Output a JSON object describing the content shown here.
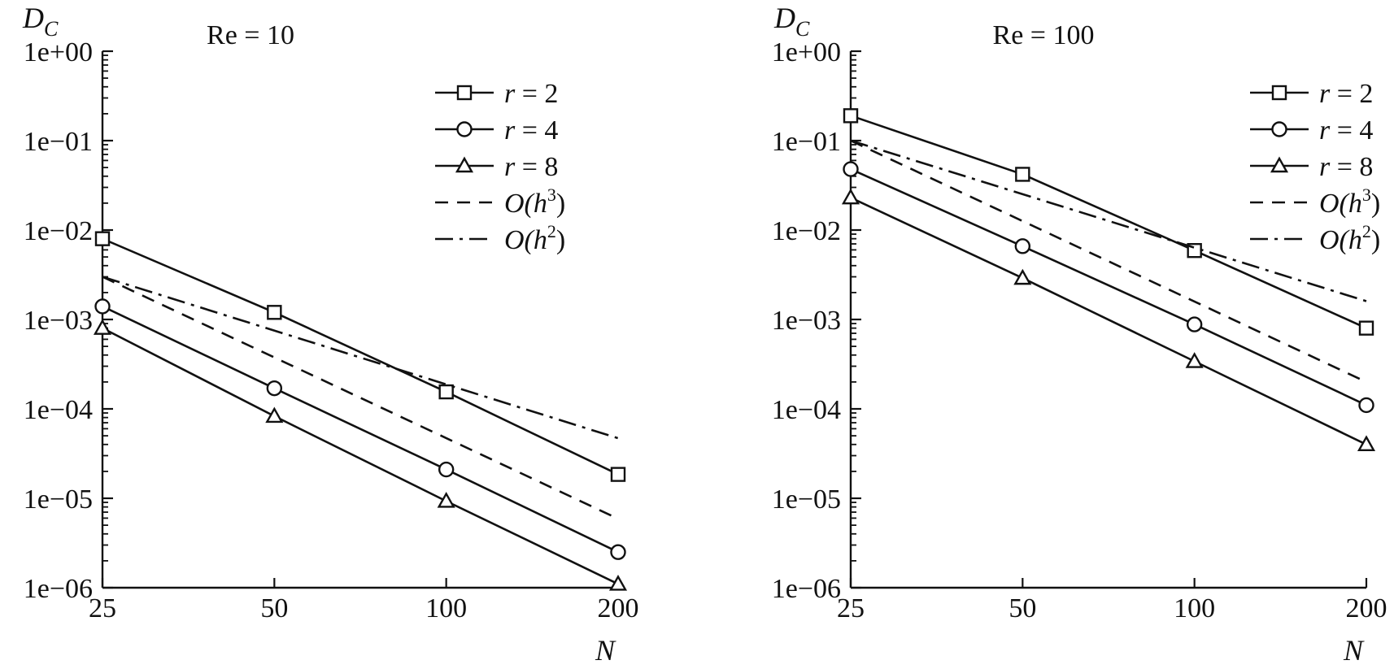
{
  "chart_data": [
    {
      "type": "line",
      "title": "Re = 10",
      "xlabel": "N",
      "ylabel": "D",
      "ylabel_sub": "C",
      "x_scale": "log",
      "y_scale": "log",
      "x_ticks": [
        25,
        50,
        100,
        200
      ],
      "x_tick_labels": [
        "25",
        "50",
        "100",
        "200"
      ],
      "y_ticks": [
        1,
        0.1,
        0.01,
        0.001,
        0.0001,
        1e-05,
        1e-06
      ],
      "y_tick_labels": [
        "1e+00",
        "1e−01",
        "1e−02",
        "1e−03",
        "1e−04",
        "1e−05",
        "1e−06"
      ],
      "xlim": [
        25,
        200
      ],
      "ylim": [
        1e-06,
        1
      ],
      "legend_position": "top-right",
      "series": [
        {
          "name": "r = 2",
          "var": "r",
          "value": "2",
          "marker": "square",
          "style": "solid",
          "x": [
            25,
            50,
            100,
            200
          ],
          "y": [
            0.008,
            0.0012,
            0.000155,
            1.85e-05
          ]
        },
        {
          "name": "r = 4",
          "var": "r",
          "value": "4",
          "marker": "circle",
          "style": "solid",
          "x": [
            25,
            50,
            100,
            200
          ],
          "y": [
            0.0014,
            0.00017,
            2.1e-05,
            2.5e-06
          ]
        },
        {
          "name": "r = 8",
          "var": "r",
          "value": "8",
          "marker": "triangle",
          "style": "solid",
          "x": [
            25,
            50,
            100,
            200
          ],
          "y": [
            0.0008,
            8.3e-05,
            9.3e-06,
            1.1e-06
          ]
        },
        {
          "name": "O(h3)",
          "var": "O(h",
          "exp": "3",
          "close": ")",
          "marker": "none",
          "style": "dashed",
          "x": [
            25,
            200
          ],
          "y": [
            0.003,
            5.9e-06
          ]
        },
        {
          "name": "O(h2)",
          "var": "O(h",
          "exp": "2",
          "close": ")",
          "marker": "none",
          "style": "dashdot",
          "x": [
            25,
            200
          ],
          "y": [
            0.003,
            4.7e-05
          ]
        }
      ]
    },
    {
      "type": "line",
      "title": "Re = 100",
      "xlabel": "N",
      "ylabel": "D",
      "ylabel_sub": "C",
      "x_scale": "log",
      "y_scale": "log",
      "x_ticks": [
        25,
        50,
        100,
        200
      ],
      "x_tick_labels": [
        "25",
        "50",
        "100",
        "200"
      ],
      "y_ticks": [
        1,
        0.1,
        0.01,
        0.001,
        0.0001,
        1e-05,
        1e-06
      ],
      "y_tick_labels": [
        "1e+00",
        "1e−01",
        "1e−02",
        "1e−03",
        "1e−04",
        "1e−05",
        "1e−06"
      ],
      "xlim": [
        25,
        200
      ],
      "ylim": [
        1e-06,
        1
      ],
      "legend_position": "top-right",
      "series": [
        {
          "name": "r = 2",
          "var": "r",
          "value": "2",
          "marker": "square",
          "style": "solid",
          "x": [
            25,
            50,
            100,
            200
          ],
          "y": [
            0.19,
            0.042,
            0.0059,
            0.0008
          ]
        },
        {
          "name": "r = 4",
          "var": "r",
          "value": "4",
          "marker": "circle",
          "style": "solid",
          "x": [
            25,
            50,
            100,
            200
          ],
          "y": [
            0.048,
            0.0066,
            0.00088,
            0.00011
          ]
        },
        {
          "name": "r = 8",
          "var": "r",
          "value": "8",
          "marker": "triangle",
          "style": "solid",
          "x": [
            25,
            50,
            100,
            200
          ],
          "y": [
            0.023,
            0.0029,
            0.00034,
            4e-05
          ]
        },
        {
          "name": "O(h3)",
          "var": "O(h",
          "exp": "3",
          "close": ")",
          "marker": "none",
          "style": "dashed",
          "x": [
            25,
            200
          ],
          "y": [
            0.1,
            0.0002
          ]
        },
        {
          "name": "O(h2)",
          "var": "O(h",
          "exp": "2",
          "close": ")",
          "marker": "none",
          "style": "dashdot",
          "x": [
            25,
            200
          ],
          "y": [
            0.1,
            0.0016
          ]
        }
      ]
    }
  ]
}
